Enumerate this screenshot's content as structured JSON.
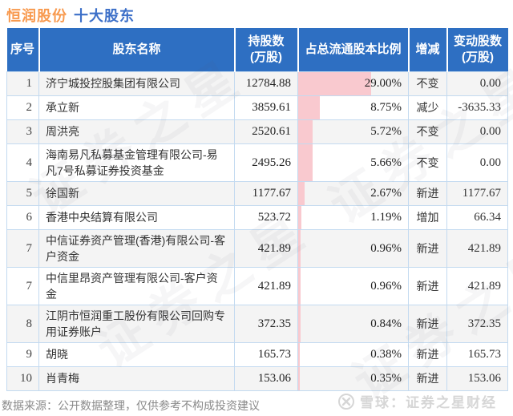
{
  "page": {
    "title_company": "恒润股份",
    "title_section": "十大股东"
  },
  "colors": {
    "header_bg": "#2e6fc2",
    "title_orange": "#f89a4f",
    "title_blue": "#3c6fc8",
    "increase_red": "#e63333",
    "decrease_green": "#1fa35a",
    "neutral_text": "#222222",
    "bar_pink": "#f9c9cf",
    "row_alt_gray": "#f4f4f4",
    "grid_blue": "#c3daf0"
  },
  "table": {
    "headers": [
      "序号",
      "股东名称",
      "持股数\n(万股)",
      "占总流通股本比例",
      "增减",
      "变动股数\n(万股)"
    ],
    "rows": [
      {
        "no": "1",
        "name": "济宁城投控股集团有限公司",
        "shares": "12784.88",
        "pct": "29.00%",
        "pct_value": 29.0,
        "change": "不变",
        "change_type": "neutral",
        "change_shares": "0.00"
      },
      {
        "no": "2",
        "name": "承立新",
        "shares": "3859.61",
        "pct": "8.75%",
        "pct_value": 8.75,
        "change": "减少",
        "change_type": "down",
        "change_shares": "-3635.33"
      },
      {
        "no": "3",
        "name": "周洪亮",
        "shares": "2520.61",
        "pct": "5.72%",
        "pct_value": 5.72,
        "change": "不变",
        "change_type": "neutral",
        "change_shares": "0.00"
      },
      {
        "no": "4",
        "name": "海南易凡私募基金管理有限公司-易凡7号私募证券投资基金",
        "shares": "2495.26",
        "pct": "5.66%",
        "pct_value": 5.66,
        "change": "不变",
        "change_type": "neutral",
        "change_shares": "0.00"
      },
      {
        "no": "5",
        "name": "徐国新",
        "shares": "1177.67",
        "pct": "2.67%",
        "pct_value": 2.67,
        "change": "新进",
        "change_type": "new",
        "change_shares": "1177.67"
      },
      {
        "no": "6",
        "name": "香港中央结算有限公司",
        "shares": "523.72",
        "pct": "1.19%",
        "pct_value": 1.19,
        "change": "增加",
        "change_type": "up",
        "change_shares": "66.34"
      },
      {
        "no": "7",
        "name": "中信证券资产管理(香港)有限公司-客户资金",
        "shares": "421.89",
        "pct": "0.96%",
        "pct_value": 0.96,
        "change": "新进",
        "change_type": "new",
        "change_shares": "421.89"
      },
      {
        "no": "7",
        "name": "中信里昂资产管理有限公司-客户资金",
        "shares": "421.89",
        "pct": "0.96%",
        "pct_value": 0.96,
        "change": "新进",
        "change_type": "new",
        "change_shares": "421.89"
      },
      {
        "no": "8",
        "name": "江阴市恒润重工股份有限公司回购专用证券账户",
        "shares": "372.35",
        "pct": "0.84%",
        "pct_value": 0.84,
        "change": "新进",
        "change_type": "new",
        "change_shares": "372.35"
      },
      {
        "no": "9",
        "name": "胡晓",
        "shares": "165.73",
        "pct": "0.38%",
        "pct_value": 0.38,
        "change": "新进",
        "change_type": "new",
        "change_shares": "165.73"
      },
      {
        "no": "10",
        "name": "肖青梅",
        "shares": "153.06",
        "pct": "0.35%",
        "pct_value": 0.35,
        "change": "新进",
        "change_type": "new",
        "change_shares": "153.06"
      }
    ]
  },
  "chart_data": {
    "type": "table",
    "title": "恒润股份 十大股东",
    "columns": [
      "序号",
      "股东名称",
      "持股数(万股)",
      "占总流通股本比例",
      "增减",
      "变动股数(万股)"
    ],
    "rows": [
      [
        "1",
        "济宁城投控股集团有限公司",
        12784.88,
        "29.00%",
        "不变",
        0.0
      ],
      [
        "2",
        "承立新",
        3859.61,
        "8.75%",
        "减少",
        -3635.33
      ],
      [
        "3",
        "周洪亮",
        2520.61,
        "5.72%",
        "不变",
        0.0
      ],
      [
        "4",
        "海南易凡私募基金管理有限公司-易凡7号私募证券投资基金",
        2495.26,
        "5.66%",
        "不变",
        0.0
      ],
      [
        "5",
        "徐国新",
        1177.67,
        "2.67%",
        "新进",
        1177.67
      ],
      [
        "6",
        "香港中央结算有限公司",
        523.72,
        "1.19%",
        "增加",
        66.34
      ],
      [
        "7",
        "中信证券资产管理(香港)有限公司-客户资金",
        421.89,
        "0.96%",
        "新进",
        421.89
      ],
      [
        "7",
        "中信里昂资产管理有限公司-客户资金",
        421.89,
        "0.96%",
        "新进",
        421.89
      ],
      [
        "8",
        "江阴市恒润重工股份有限公司回购专用证券账户",
        372.35,
        "0.84%",
        "新进",
        372.35
      ],
      [
        "9",
        "胡晓",
        165.73,
        "0.38%",
        "新进",
        165.73
      ],
      [
        "10",
        "肖青梅",
        153.06,
        "0.35%",
        "新进",
        153.06
      ]
    ],
    "embedded_bar": {
      "column": "占总流通股本比例",
      "unit": "%",
      "values": [
        29.0,
        8.75,
        5.72,
        5.66,
        2.67,
        1.19,
        0.96,
        0.96,
        0.84,
        0.38,
        0.35
      ],
      "bar_color": "#f9c9cf"
    }
  },
  "watermark": {
    "text": "证券之星"
  },
  "footer": {
    "source_note": "数据来源：公开数据整理，仅供参考不构成投资建议",
    "brand": "雪球：证券之星财经"
  }
}
